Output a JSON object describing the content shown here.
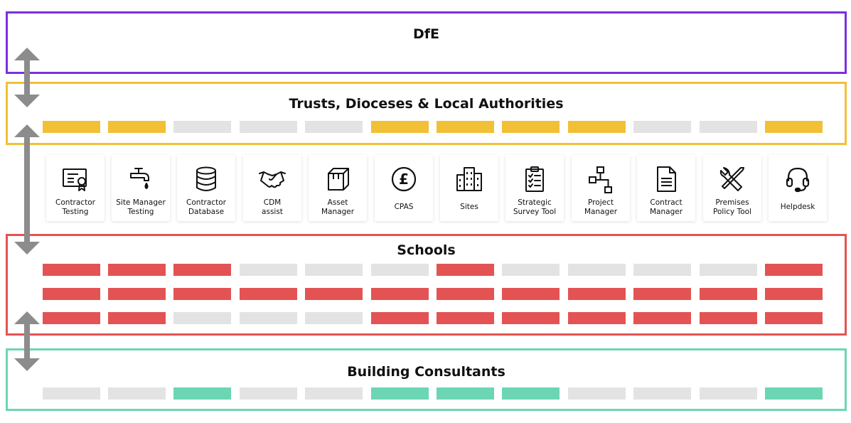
{
  "colors": {
    "dfe": "#7b2fe0",
    "trusts": "#f2c037",
    "schools": "#e45353",
    "consultants": "#6cd6b4",
    "inactive": "#e3e3e3",
    "arrow": "#8c8c8c"
  },
  "bands": {
    "dfe": {
      "title": "DfE"
    },
    "trusts": {
      "title": "Trusts, Dioceses & Local Authorities"
    },
    "schools": {
      "title": "Schools"
    },
    "consultants": {
      "title": "Building Consultants"
    }
  },
  "tools": [
    {
      "label": "Contractor\nTesting",
      "icon": "certificate-icon"
    },
    {
      "label": "Site Manager\nTesting",
      "icon": "tap-icon"
    },
    {
      "label": "Contractor\nDatabase",
      "icon": "database-icon"
    },
    {
      "label": "CDM\nassist",
      "icon": "handshake-icon"
    },
    {
      "label": "Asset\nManager",
      "icon": "box-icon"
    },
    {
      "label": "CPAS",
      "icon": "pound-icon"
    },
    {
      "label": "Sites",
      "icon": "buildings-icon"
    },
    {
      "label": "Strategic\nSurvey Tool",
      "icon": "clipboard-checklist-icon"
    },
    {
      "label": "Project\nManager",
      "icon": "flowchart-icon"
    },
    {
      "label": "Contract\nManager",
      "icon": "document-icon"
    },
    {
      "label": "Premises\nPolicy Tool",
      "icon": "tools-icon"
    },
    {
      "label": "Helpdesk",
      "icon": "headset-icon"
    }
  ],
  "access": {
    "trusts": [
      [
        1,
        1,
        0,
        0,
        0,
        1,
        1,
        1,
        1,
        0,
        0,
        1
      ]
    ],
    "schools": [
      [
        1,
        1,
        1,
        0,
        0,
        0,
        1,
        0,
        0,
        0,
        0,
        1
      ],
      [
        1,
        1,
        1,
        1,
        1,
        1,
        1,
        1,
        1,
        1,
        1,
        1
      ],
      [
        1,
        1,
        0,
        0,
        0,
        1,
        1,
        1,
        1,
        1,
        1,
        1
      ]
    ],
    "consultants": [
      [
        0,
        0,
        1,
        0,
        0,
        1,
        1,
        1,
        0,
        0,
        0,
        1
      ]
    ]
  }
}
